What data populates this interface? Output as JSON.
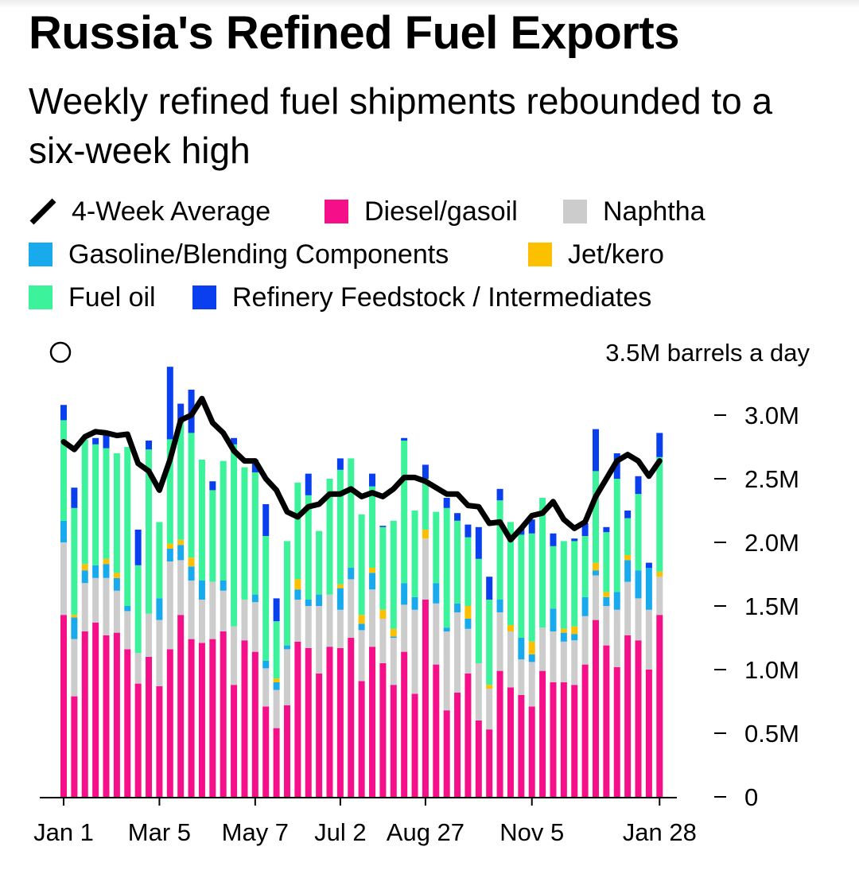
{
  "title": "Russia's Refined Fuel Exports",
  "subtitle": "Weekly refined fuel shipments rebounded to a six-week high",
  "legend": [
    {
      "label": "4-Week Average",
      "kind": "line",
      "color": "#000000"
    },
    {
      "label": "Diesel/gasoil",
      "kind": "swatch",
      "color": "#f5108a"
    },
    {
      "label": "Naphtha",
      "kind": "swatch",
      "color": "#cccccc"
    },
    {
      "label": "Gasoline/Blending Components",
      "kind": "swatch",
      "color": "#19aaee"
    },
    {
      "label": "Jet/kero",
      "kind": "swatch",
      "color": "#fcc000"
    },
    {
      "label": "Fuel oil",
      "kind": "swatch",
      "color": "#3cf29a"
    },
    {
      "label": "Refinery Feedstock / Intermediates",
      "kind": "swatch",
      "color": "#0a3ff0"
    }
  ],
  "chart_data": {
    "type": "bar",
    "stacked": true,
    "unit_label": "3.5M barrels a day",
    "y_axis_side": "right",
    "ylim": [
      0,
      3.5
    ],
    "y_ticks": [
      {
        "value": 0,
        "label": "0"
      },
      {
        "value": 0.5,
        "label": "0.5M"
      },
      {
        "value": 1.0,
        "label": "1.0M"
      },
      {
        "value": 1.5,
        "label": "1.5M"
      },
      {
        "value": 2.0,
        "label": "2.0M"
      },
      {
        "value": 2.5,
        "label": "2.5M"
      },
      {
        "value": 3.0,
        "label": "3.0M"
      }
    ],
    "x_ticks": [
      {
        "index": 0,
        "label": "Jan 1"
      },
      {
        "index": 9,
        "label": "Mar 5"
      },
      {
        "index": 18,
        "label": "May 7"
      },
      {
        "index": 26,
        "label": "Jul 2"
      },
      {
        "index": 34,
        "label": "Aug 27"
      },
      {
        "index": 44,
        "label": "Nov 5"
      },
      {
        "index": 56,
        "label": "Jan 28"
      }
    ],
    "series": [
      {
        "name": "Diesel/gasoil",
        "color": "#f5108a",
        "values": [
          1.43,
          0.79,
          1.3,
          1.37,
          1.27,
          1.29,
          1.16,
          0.89,
          1.1,
          0.87,
          1.16,
          1.43,
          1.24,
          1.21,
          1.24,
          1.3,
          0.88,
          1.23,
          1.14,
          0.71,
          0.54,
          0.72,
          1.22,
          1.17,
          0.97,
          1.18,
          1.17,
          1.25,
          0.91,
          1.18,
          1.05,
          0.88,
          1.14,
          0.81,
          1.55,
          1.04,
          0.68,
          0.82,
          0.97,
          0.6,
          0.53,
          0.99,
          0.86,
          0.8,
          0.71,
          0.99,
          0.9,
          0.9,
          0.88,
          1.04,
          1.39,
          1.19,
          1.02,
          1.27,
          1.23,
          1.0,
          1.43
        ]
      },
      {
        "name": "Naphtha",
        "color": "#cccccc",
        "values": [
          0.57,
          0.45,
          0.38,
          0.35,
          0.45,
          0.33,
          0.3,
          0.24,
          0.34,
          0.52,
          0.69,
          0.43,
          0.46,
          0.34,
          0.45,
          0.32,
          0.46,
          0.32,
          0.39,
          0.3,
          0.3,
          0.44,
          0.33,
          0.33,
          0.53,
          0.41,
          0.3,
          0.46,
          0.4,
          0.45,
          0.35,
          0.37,
          0.37,
          0.66,
          0.48,
          0.48,
          0.62,
          0.63,
          0.35,
          0.45,
          0.32,
          0.46,
          0.44,
          0.28,
          0.35,
          0.34,
          0.4,
          0.32,
          0.35,
          0.38,
          0.35,
          0.31,
          0.45,
          0.42,
          0.33,
          0.47,
          0.3
        ]
      },
      {
        "name": "Gasoline/Blending Components",
        "color": "#19aaee",
        "values": [
          0.17,
          0.17,
          0.1,
          0.1,
          0.11,
          0.1,
          0.04,
          0.0,
          0.0,
          0.17,
          0.1,
          0.12,
          0.11,
          0.15,
          0.0,
          0.08,
          0.0,
          0.0,
          0.06,
          0.06,
          0.06,
          0.03,
          0.08,
          0.05,
          0.09,
          0.0,
          0.17,
          0.09,
          0.05,
          0.13,
          0.0,
          0.01,
          0.17,
          0.1,
          0.0,
          0.16,
          0.03,
          0.07,
          0.08,
          0.0,
          0.0,
          0.1,
          0.0,
          0.17,
          0.06,
          0.0,
          0.18,
          0.07,
          0.05,
          0.15,
          0.04,
          0.07,
          0.14,
          0.17,
          0.22,
          0.33,
          0.0
        ]
      },
      {
        "name": "Jet/kero",
        "color": "#fcc000",
        "values": [
          0.0,
          0.02,
          0.05,
          0.0,
          0.04,
          0.04,
          0.0,
          0.0,
          0.0,
          0.0,
          0.04,
          0.04,
          0.07,
          0.0,
          0.0,
          0.0,
          0.0,
          0.0,
          0.0,
          0.0,
          0.03,
          0.0,
          0.08,
          0.0,
          0.0,
          0.0,
          0.03,
          0.0,
          0.07,
          0.04,
          0.07,
          0.06,
          0.0,
          0.0,
          0.07,
          0.0,
          0.0,
          0.0,
          0.1,
          0.0,
          0.03,
          0.0,
          0.05,
          0.0,
          0.1,
          0.0,
          0.0,
          0.03,
          0.06,
          0.0,
          0.06,
          0.04,
          0.0,
          0.04,
          0.0,
          0.0,
          0.04
        ]
      },
      {
        "name": "Fuel oil",
        "color": "#3cf29a",
        "values": [
          0.79,
          0.84,
          0.98,
          0.95,
          0.87,
          0.94,
          1.25,
          0.69,
          1.29,
          0.6,
          0.82,
          0.92,
          0.98,
          0.95,
          0.72,
          0.94,
          1.43,
          1.04,
          0.96,
          0.98,
          0.45,
          0.82,
          0.76,
          0.82,
          0.5,
          0.91,
          0.9,
          0.86,
          0.79,
          0.64,
          0.65,
          0.85,
          1.12,
          0.68,
          0.4,
          0.56,
          0.94,
          0.65,
          0.54,
          0.82,
          0.67,
          0.78,
          0.81,
          0.81,
          0.85,
          1.02,
          0.49,
          0.69,
          0.67,
          0.48,
          0.72,
          0.47,
          0.89,
          0.29,
          0.6,
          0.0,
          0.9
        ]
      },
      {
        "name": "Refinery Feedstock / Intermediates",
        "color": "#0a3ff0",
        "values": [
          0.12,
          0.16,
          0.0,
          0.05,
          0.12,
          0.0,
          0.0,
          0.28,
          0.07,
          0.0,
          0.57,
          0.15,
          0.34,
          0.0,
          0.07,
          0.0,
          0.05,
          0.0,
          0.1,
          0.25,
          0.18,
          0.0,
          0.0,
          0.17,
          0.0,
          0.0,
          0.09,
          0.0,
          0.0,
          0.1,
          0.01,
          0.0,
          0.02,
          0.0,
          0.11,
          0.0,
          0.08,
          0.06,
          0.1,
          0.25,
          0.18,
          0.09,
          0.0,
          0.05,
          0.11,
          0.0,
          0.1,
          0.0,
          0.02,
          0.1,
          0.33,
          0.04,
          0.2,
          0.06,
          0.14,
          0.04,
          0.19
        ]
      },
      {
        "name": "4-Week Average",
        "color": "#000000",
        "kind": "line",
        "values": [
          2.79,
          2.73,
          2.83,
          2.87,
          2.86,
          2.84,
          2.85,
          2.62,
          2.56,
          2.41,
          2.65,
          2.96,
          3.0,
          3.13,
          2.94,
          2.86,
          2.72,
          2.64,
          2.64,
          2.5,
          2.41,
          2.24,
          2.2,
          2.28,
          2.3,
          2.38,
          2.38,
          2.42,
          2.36,
          2.39,
          2.36,
          2.42,
          2.51,
          2.51,
          2.48,
          2.43,
          2.38,
          2.38,
          2.29,
          2.28,
          2.15,
          2.16,
          2.02,
          2.11,
          2.21,
          2.23,
          2.32,
          2.18,
          2.11,
          2.16,
          2.36,
          2.5,
          2.64,
          2.69,
          2.64,
          2.52,
          2.64
        ]
      }
    ]
  }
}
